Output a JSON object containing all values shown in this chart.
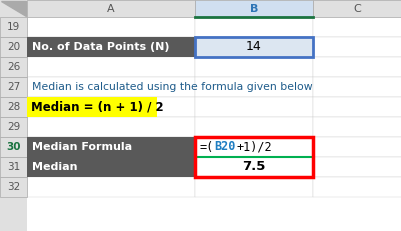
{
  "bg_color": "#ffffff",
  "col_header_bg": "#e0e0e0",
  "dark_cell_bg": "#595959",
  "dark_cell_fg": "#ffffff",
  "yellow_bg": "#ffff00",
  "yellow_fg": "#000000",
  "blue_cell_bg": "#dce6f1",
  "blue_cell_border": "#4472c4",
  "red_border": "#ff0000",
  "green_line": "#00b050",
  "col_header_selected_bg": "#d0dff0",
  "col_header_selected_border": "#2e75b6",
  "col_header_selected_bottom": "#1a7340",
  "row_numbers": [
    "19",
    "20",
    "26",
    "27",
    "28",
    "29",
    "30",
    "31",
    "32"
  ],
  "col_labels": [
    "A",
    "B",
    "C"
  ],
  "row20_a": "No. of Data Points (N)",
  "row20_b": "14",
  "row27_a": "Median is calculated using the formula given below",
  "row28_a": "Median = (n + 1) / 2",
  "row30_a": "Median Formula",
  "row30_b_part1": "=(",
  "row30_b_part2": "B20",
  "row30_b_part3": "+1)/2",
  "row31_a": "Median",
  "row31_b": "7.5",
  "row30_b_color": "#1f7ec2",
  "row27_color": "#1f5c8b",
  "formula_bg": "#ffffff",
  "grid_line_color": "#d0d0d0",
  "row_num_color": "#555555",
  "row30_num_color": "#1a7340"
}
